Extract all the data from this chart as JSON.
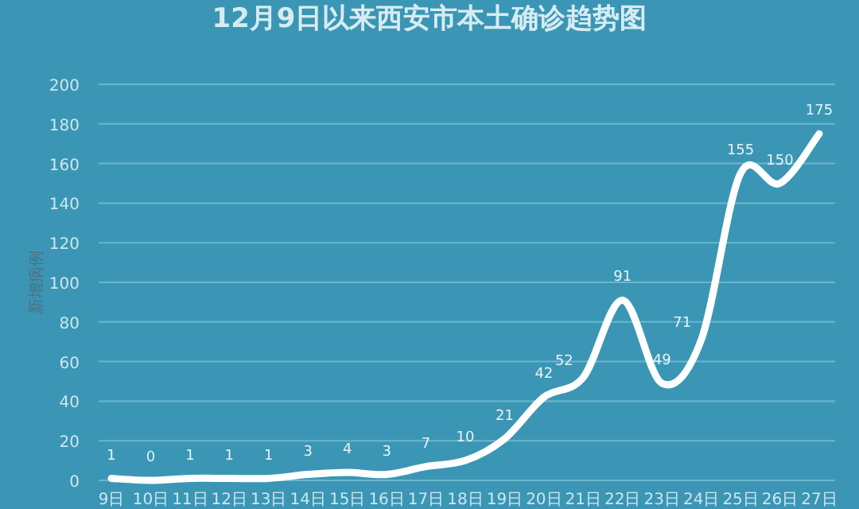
{
  "chart_data": {
    "type": "line",
    "title": "12月9日以来西安市本土确诊趋势图",
    "ylabel": "新增病例",
    "categories": [
      "9日",
      "10日",
      "11日",
      "12日",
      "13日",
      "14日",
      "15日",
      "16日",
      "17日",
      "18日",
      "19日",
      "20日",
      "21日",
      "22日",
      "23日",
      "24日",
      "25日",
      "26日",
      "27日"
    ],
    "series": [
      {
        "color": "#ffffff",
        "values": [
          1,
          0,
          1,
          1,
          1,
          3,
          4,
          3,
          7,
          10,
          21,
          42,
          52,
          91,
          49,
          71,
          155,
          150,
          175
        ]
      }
    ],
    "ylim": [
      0,
      200
    ],
    "yticks": [
      0,
      20,
      40,
      60,
      80,
      100,
      120,
      140,
      160,
      180,
      200
    ],
    "grid": "y",
    "data_labels": true,
    "marker": "none",
    "line_style": "solid"
  }
}
